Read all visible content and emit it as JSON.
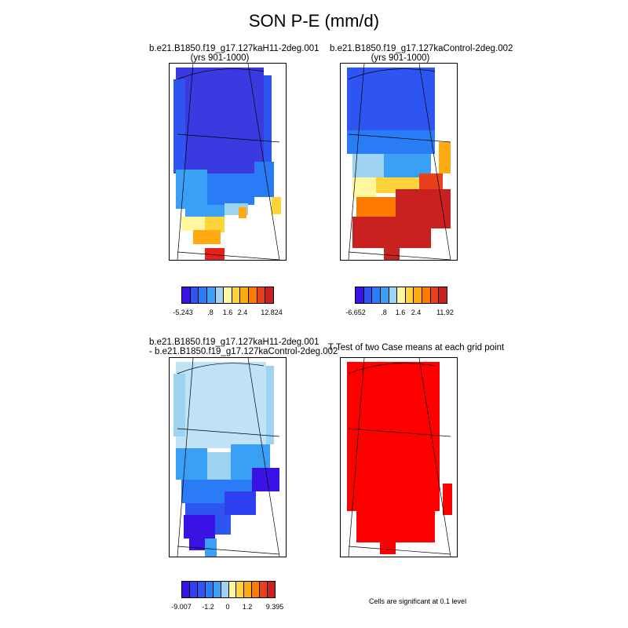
{
  "title": "SON P-E (mm/d)",
  "panels": [
    {
      "title_line1": "b.e21.B1850.f19_g17.127kaH11-2deg.001",
      "title_line2": "(yrs 901-1000)"
    },
    {
      "title_line1": "b.e21.B1850.f19_g17.127kaControl-2deg.002",
      "title_line2": "(yrs 901-1000)"
    },
    {
      "title_line1": "b.e21.B1850.f19_g17.127kaH11-2deg.001",
      "title_line2": "- b.e21.B1850.f19_g17.127kaControl-2deg.002"
    },
    {
      "title_line1": "T-Test of two Case means at each grid point"
    }
  ],
  "colorbar_top": {
    "colors": [
      "#3a12e6",
      "#2e55f0",
      "#2a7cf6",
      "#3aa0f6",
      "#9dd3f0",
      "#fff7a0",
      "#ffd33a",
      "#ffaa10",
      "#ff7a00",
      "#e8401c",
      "#c92020"
    ],
    "labels": [
      "-5.243",
      ".8",
      "1.6",
      "2.4",
      "12.824"
    ]
  },
  "colorbar_top_right": {
    "colors": [
      "#3a12e6",
      "#2e55f0",
      "#2a7cf6",
      "#3aa0f6",
      "#9dd3f0",
      "#fff7a0",
      "#ffd33a",
      "#ffaa10",
      "#ff7a00",
      "#e8401c",
      "#c92020"
    ],
    "labels": [
      "-6.652",
      ".8",
      "1.6",
      "2.4",
      "11.92"
    ]
  },
  "colorbar_bottom": {
    "colors": [
      "#3a12e6",
      "#2e3ff0",
      "#2e55f0",
      "#2a7cf6",
      "#3aa0f6",
      "#9dd3f0",
      "#fff7a0",
      "#ffd33a",
      "#ffaa10",
      "#ff7a00",
      "#e8401c",
      "#c92020"
    ],
    "labels": [
      "-9.007",
      "-1.2",
      "0",
      "1.2",
      "9.395"
    ]
  },
  "significance_note": "Cells are significant at 0.1 level",
  "significance_color": "#ff0000"
}
